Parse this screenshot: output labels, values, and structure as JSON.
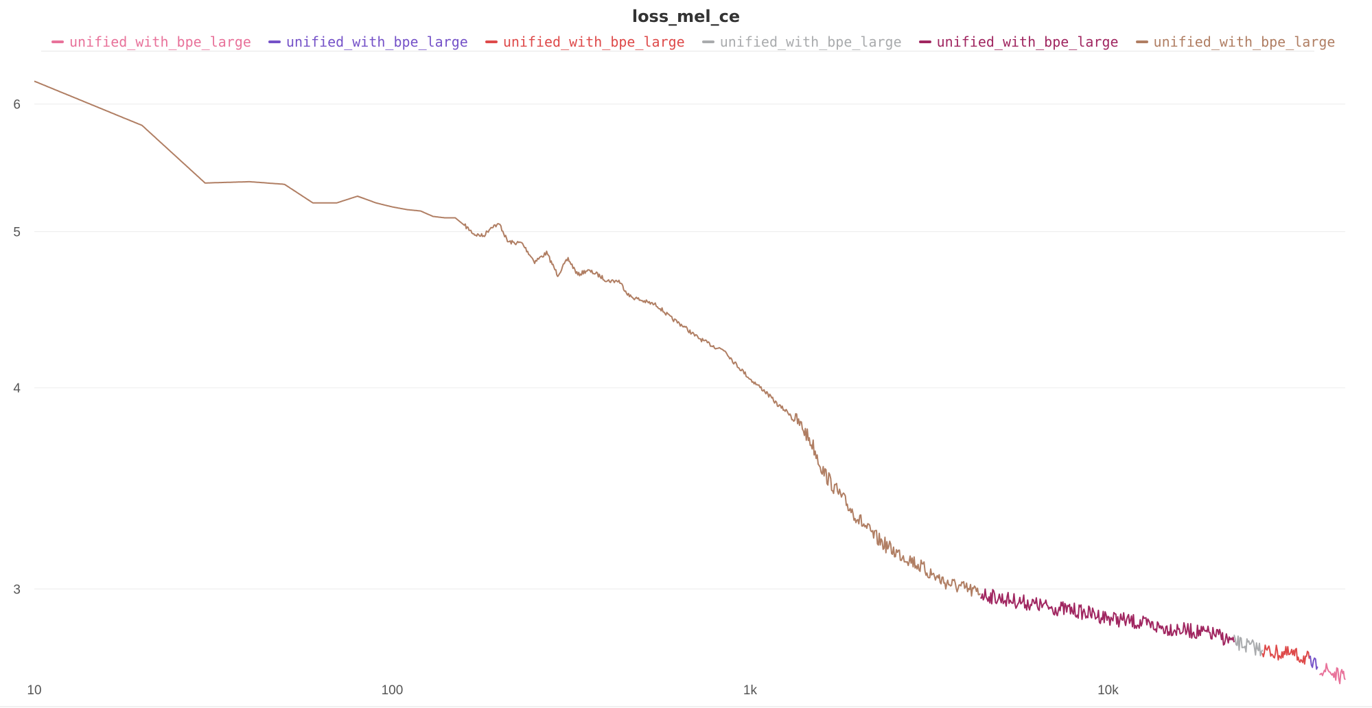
{
  "chart_data": {
    "type": "line",
    "title": "loss_mel_ce",
    "xlabel": "",
    "ylabel": "",
    "x_scale": "log",
    "y_scale": "log",
    "xlim": [
      10,
      46000
    ],
    "ylim": [
      2.65,
      6.45
    ],
    "x_ticks": [
      {
        "value": 10,
        "label": "10"
      },
      {
        "value": 100,
        "label": "100"
      },
      {
        "value": 1000,
        "label": "1k"
      },
      {
        "value": 10000,
        "label": "10k"
      }
    ],
    "y_ticks": [
      {
        "value": 3,
        "label": "3"
      },
      {
        "value": 4,
        "label": "4"
      },
      {
        "value": 5,
        "label": "5"
      },
      {
        "value": 6,
        "label": "6"
      }
    ],
    "grid": true,
    "legend_position": "top",
    "series": [
      {
        "name": "unified_with_bpe_large",
        "color": "#e8729a",
        "x": [
          39000,
          41000,
          43000,
          45000,
          46000
        ],
        "y": [
          2.68,
          2.67,
          2.655,
          2.645,
          2.635
        ]
      },
      {
        "name": "unified_with_bpe_large",
        "color": "#7552c8",
        "x": [
          36500,
          37500,
          38500
        ],
        "y": [
          2.7,
          2.69,
          2.685
        ]
      },
      {
        "name": "unified_with_bpe_large",
        "color": "#de4a4a",
        "x": [
          27000,
          29000,
          31000,
          33000,
          35000,
          36500
        ],
        "y": [
          2.75,
          2.74,
          2.735,
          2.73,
          2.72,
          2.715
        ]
      },
      {
        "name": "unified_with_bpe_large",
        "color": "#a9abad",
        "x": [
          22500,
          24000,
          25500,
          27000
        ],
        "y": [
          2.78,
          2.77,
          2.76,
          2.75
        ]
      },
      {
        "name": "unified_with_bpe_large",
        "color": "#a02660",
        "x": [
          4400,
          5000,
          6000,
          7000,
          8000,
          10000,
          12000,
          14000,
          16000,
          18000,
          20000,
          22500
        ],
        "y": [
          2.98,
          2.96,
          2.94,
          2.92,
          2.91,
          2.88,
          2.86,
          2.84,
          2.83,
          2.82,
          2.81,
          2.78
        ]
      },
      {
        "name": "unified_with_bpe_large",
        "color": "#b07e63",
        "x": [
          10,
          20,
          30,
          40,
          50,
          60,
          70,
          80,
          90,
          100,
          110,
          120,
          130,
          140,
          150,
          160,
          170,
          180,
          190,
          200,
          210,
          220,
          230,
          250,
          270,
          290,
          310,
          330,
          350,
          370,
          400,
          430,
          460,
          500,
          550,
          600,
          650,
          700,
          750,
          800,
          850,
          900,
          950,
          1000,
          1100,
          1200,
          1300,
          1400,
          1500,
          1600,
          1700,
          1800,
          2000,
          2200,
          2500,
          2800,
          3100,
          3500,
          4000,
          4400
        ],
        "y": [
          6.2,
          5.82,
          5.36,
          5.37,
          5.35,
          5.21,
          5.21,
          5.26,
          5.21,
          5.18,
          5.16,
          5.15,
          5.11,
          5.1,
          5.1,
          5.04,
          4.98,
          4.97,
          5.04,
          5.05,
          4.93,
          4.92,
          4.92,
          4.79,
          4.85,
          4.7,
          4.81,
          4.7,
          4.73,
          4.71,
          4.66,
          4.66,
          4.56,
          4.53,
          4.5,
          4.42,
          4.37,
          4.31,
          4.27,
          4.24,
          4.22,
          4.15,
          4.1,
          4.05,
          3.98,
          3.9,
          3.85,
          3.78,
          3.68,
          3.55,
          3.48,
          3.42,
          3.32,
          3.24,
          3.17,
          3.13,
          3.08,
          3.03,
          3.0,
          2.98
        ]
      }
    ]
  }
}
